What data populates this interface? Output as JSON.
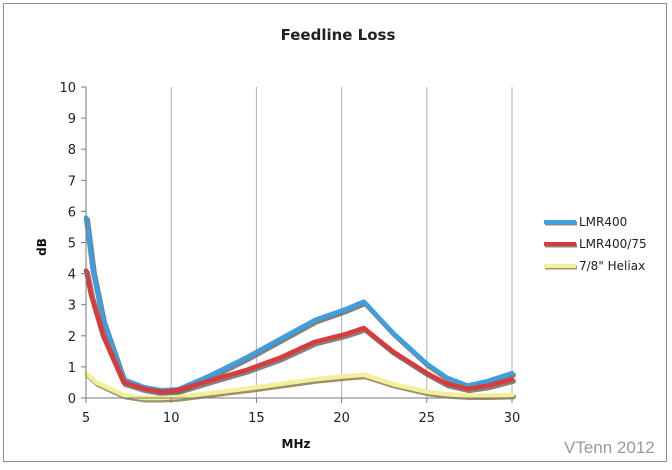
{
  "chart_data": {
    "type": "line",
    "title": "Feedline Loss",
    "xlabel": "MHz",
    "ylabel": "dB",
    "xlim": [
      5,
      30
    ],
    "ylim": [
      0,
      10
    ],
    "x_ticks": [
      "5",
      "10",
      "15",
      "20",
      "25",
      "30"
    ],
    "y_ticks": [
      "0",
      "1",
      "2",
      "3",
      "4",
      "5",
      "6",
      "7",
      "8",
      "9",
      "10"
    ],
    "grid": "vertical",
    "legend_position": "right",
    "series": [
      {
        "name": "LMR400",
        "color": "#3d9ee0",
        "shadow": "#6b6b6b",
        "points": [
          [
            5,
            5.8
          ],
          [
            5.4,
            4.1
          ],
          [
            6,
            2.5
          ],
          [
            7.2,
            0.6
          ],
          [
            8.4,
            0.35
          ],
          [
            9.4,
            0.25
          ],
          [
            10.4,
            0.28
          ],
          [
            12.2,
            0.7
          ],
          [
            14.4,
            1.3
          ],
          [
            16.4,
            1.9
          ],
          [
            18.4,
            2.5
          ],
          [
            20.2,
            2.85
          ],
          [
            21.3,
            3.1
          ],
          [
            23,
            2.1
          ],
          [
            25,
            1.1
          ],
          [
            26.2,
            0.65
          ],
          [
            27.4,
            0.4
          ],
          [
            28.6,
            0.55
          ],
          [
            30,
            0.8
          ]
        ]
      },
      {
        "name": "LMR400/75",
        "color": "#d93b3b",
        "shadow": "#6b6b6b",
        "points": [
          [
            5,
            4.1
          ],
          [
            5.3,
            3.3
          ],
          [
            6,
            2.0
          ],
          [
            7.2,
            0.5
          ],
          [
            8.4,
            0.3
          ],
          [
            9.4,
            0.2
          ],
          [
            10.4,
            0.25
          ],
          [
            12.2,
            0.55
          ],
          [
            14.4,
            0.9
          ],
          [
            16.4,
            1.3
          ],
          [
            18.4,
            1.8
          ],
          [
            20.2,
            2.05
          ],
          [
            21.3,
            2.25
          ],
          [
            23,
            1.5
          ],
          [
            25,
            0.8
          ],
          [
            26.2,
            0.45
          ],
          [
            27.4,
            0.3
          ],
          [
            28.6,
            0.4
          ],
          [
            30,
            0.6
          ]
        ]
      },
      {
        "name": "7/8\" Heliax",
        "color": "#f4ef9a",
        "shadow": "#8a7d4e",
        "points": [
          [
            5,
            0.8
          ],
          [
            5.6,
            0.5
          ],
          [
            6.4,
            0.3
          ],
          [
            7.2,
            0.1
          ],
          [
            8.4,
            0.0
          ],
          [
            9.4,
            0.0
          ],
          [
            10.4,
            0.03
          ],
          [
            12.2,
            0.15
          ],
          [
            14.4,
            0.3
          ],
          [
            16.4,
            0.45
          ],
          [
            18.4,
            0.6
          ],
          [
            20.2,
            0.7
          ],
          [
            21.3,
            0.75
          ],
          [
            23,
            0.45
          ],
          [
            25,
            0.2
          ],
          [
            26.2,
            0.12
          ],
          [
            27.4,
            0.08
          ],
          [
            28.6,
            0.08
          ],
          [
            30,
            0.1
          ]
        ]
      }
    ]
  },
  "watermark": "VTenn 2012"
}
